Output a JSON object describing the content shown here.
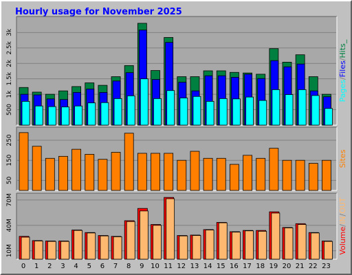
{
  "title": "Hourly usage for November 2025",
  "colors": {
    "hits": "#008040",
    "files": "#0000ff",
    "pages": "#00ffff",
    "sites": "#ff8000",
    "kbytes": "#ff0000",
    "kb_in": "#ffb870",
    "kb_out": "#ffb870",
    "panel": "#a8a8a8",
    "grid": "#808080",
    "label_slash": "#808080"
  },
  "chart_data": [
    {
      "type": "bar",
      "title": "Hourly usage for November 2025",
      "panel": "requests",
      "categories": [
        "0",
        "1",
        "2",
        "3",
        "4",
        "5",
        "6",
        "7",
        "8",
        "9",
        "10",
        "11",
        "12",
        "13",
        "14",
        "15",
        "16",
        "17",
        "18",
        "19",
        "20",
        "21",
        "22",
        "23"
      ],
      "series": [
        {
          "name": "Hits",
          "values": [
            1220,
            1070,
            1000,
            1110,
            1250,
            1370,
            1290,
            1570,
            1930,
            3300,
            1770,
            2840,
            1570,
            1570,
            1760,
            1760,
            1710,
            1690,
            1650,
            2480,
            2040,
            2280,
            1570,
            1000
          ]
        },
        {
          "name": "Files",
          "values": [
            1000,
            980,
            850,
            830,
            1060,
            1170,
            1060,
            1430,
            1700,
            3080,
            1480,
            2680,
            1390,
            1110,
            1600,
            1600,
            1550,
            1650,
            1510,
            2090,
            1890,
            1980,
            1110,
            920
          ]
        },
        {
          "name": "Pages",
          "values": [
            770,
            620,
            600,
            590,
            620,
            720,
            730,
            860,
            950,
            1500,
            860,
            1120,
            880,
            930,
            770,
            860,
            850,
            910,
            800,
            1150,
            990,
            1150,
            960,
            540
          ]
        }
      ],
      "ylabels": [
        "500",
        "1k",
        "1.5k",
        "2k",
        "2.5k",
        "3k"
      ],
      "ylim": [
        0,
        3520
      ],
      "right_label": [
        "Pages",
        "/",
        "Files",
        "/",
        "Hits",
        "_"
      ]
    },
    {
      "type": "bar",
      "panel": "sites",
      "categories": [
        "0",
        "1",
        "2",
        "3",
        "4",
        "5",
        "6",
        "7",
        "8",
        "9",
        "10",
        "11",
        "12",
        "13",
        "14",
        "15",
        "16",
        "17",
        "18",
        "19",
        "20",
        "21",
        "22",
        "23"
      ],
      "series": [
        {
          "name": "Sites",
          "values": [
            288,
            220,
            160,
            170,
            205,
            180,
            155,
            190,
            285,
            185,
            185,
            185,
            150,
            195,
            160,
            160,
            130,
            175,
            160,
            210,
            150,
            150,
            135,
            150
          ]
        }
      ],
      "ylabels": [
        "50",
        "150",
        "250"
      ],
      "ylim": [
        0,
        315
      ],
      "right_label": [
        "Sites"
      ]
    },
    {
      "type": "bar",
      "panel": "volume",
      "categories": [
        "0",
        "1",
        "2",
        "3",
        "4",
        "5",
        "6",
        "7",
        "8",
        "9",
        "10",
        "11",
        "12",
        "13",
        "14",
        "15",
        "16",
        "17",
        "18",
        "19",
        "20",
        "21",
        "22",
        "23"
      ],
      "series": [
        {
          "name": "Volume",
          "values": [
            27.0,
            22.0,
            21.5,
            21.5,
            34.5,
            31.5,
            28.0,
            27.0,
            45.5,
            60.0,
            41.0,
            73.0,
            28.0,
            28.5,
            35.0,
            43.5,
            32.5,
            34.0,
            34.0,
            56.0,
            37.5,
            42.0,
            31.5,
            21.5
          ]
        },
        {
          "name": "IN/OUT",
          "values": [
            26.0,
            21.5,
            21.0,
            21.0,
            34.0,
            31.0,
            27.5,
            26.5,
            44.5,
            57.0,
            40.0,
            71.5,
            27.5,
            28.0,
            34.5,
            43.0,
            32.0,
            33.5,
            33.0,
            54.5,
            37.0,
            41.0,
            31.0,
            21.0
          ]
        }
      ],
      "ylabels": [
        "10M",
        "40M",
        "70M"
      ],
      "ylim": [
        0,
        78
      ],
      "right_label": [
        "Volume",
        "/",
        "IN",
        "/",
        "OUT"
      ]
    }
  ]
}
